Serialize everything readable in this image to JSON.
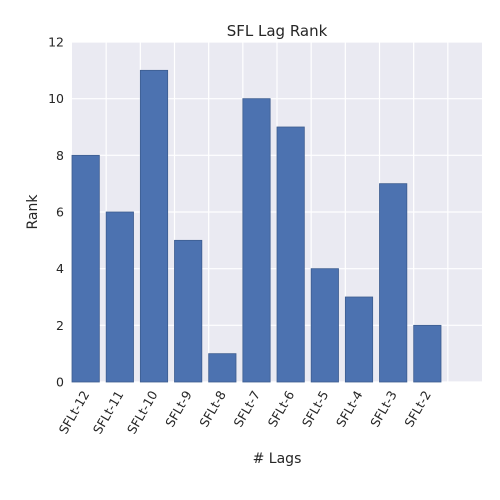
{
  "chart_data": {
    "type": "bar",
    "title": "SFL Lag Rank",
    "xlabel": "# Lags",
    "ylabel": "Rank",
    "categories": [
      "SFLt-12",
      "SFLt-11",
      "SFLt-10",
      "SFLt-9",
      "SFLt-8",
      "SFLt-7",
      "SFLt-6",
      "SFLt-5",
      "SFLt-4",
      "SFLt-3",
      "SFLt-2"
    ],
    "values": [
      8,
      6,
      11,
      5,
      1,
      10,
      9,
      4,
      3,
      7,
      2
    ],
    "ylim": [
      0,
      12
    ],
    "yticks": [
      "0",
      "2",
      "4",
      "6",
      "8",
      "10",
      "12"
    ],
    "grid": true,
    "bar_color": "#4c72b0",
    "plot_background": "#eaeaf2",
    "grid_color": "#ffffff"
  }
}
